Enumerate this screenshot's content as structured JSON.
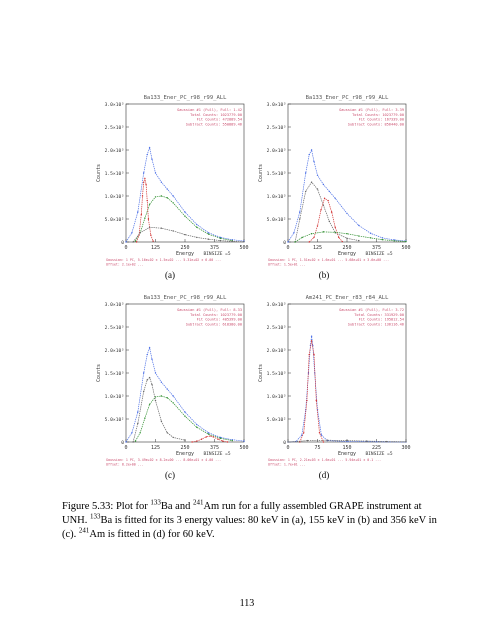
{
  "colors": {
    "blue": "#4b6fe6",
    "green": "#2f8f2f",
    "red": "#d23232",
    "gray": "#666666",
    "legend": "#c94a6b"
  },
  "panels": [
    {
      "title": "Ba133_Ener_PC_r98_r99_ALL",
      "label": "(a)",
      "legend": [
        "Gaussian #1 (Full), Full: 1.42",
        "Total Counts: 1023779.00",
        "Fit Counts: 472889.54",
        "Subtract Counts: 550889.46"
      ],
      "footer": [
        "Gaussian: 1 PC, 5.16e+02 ± 1.5e+02 ... 5.31e+02 ± 6.00 ...",
        "Offset: 2.1e+02 ..."
      ],
      "chart_data": {
        "type": "line",
        "xlabel": "Energy",
        "bin_label": "BINSIZE =5",
        "ylabel": "Counts",
        "xlim": [
          0,
          500
        ],
        "ylim": [
          0,
          3000
        ],
        "xticks": [
          "0",
          "125",
          "250",
          "375",
          "500"
        ],
        "yticks": [
          "0",
          "5.0×10²",
          "1.0×10³",
          "1.5×10³",
          "2.0×10³",
          "2.5×10³",
          "3.0×10³"
        ],
        "series": [
          {
            "color": "blue",
            "x": [
              0,
              25,
              50,
              75,
              90,
              100,
              110,
              125,
              150,
              175,
              200,
              250,
              300,
              350,
              400,
              450,
              500
            ],
            "y": [
              0,
              200,
              650,
              1500,
              1900,
              2050,
              1800,
              1500,
              1300,
              1150,
              1000,
              650,
              380,
              200,
              100,
              50,
              20
            ]
          },
          {
            "color": "green",
            "x": [
              40,
              60,
              80,
              100,
              125,
              150,
              175,
              200,
              250,
              300,
              350,
              400,
              450
            ],
            "y": [
              20,
              200,
              520,
              820,
              980,
              1000,
              960,
              850,
              560,
              320,
              170,
              80,
              30
            ]
          },
          {
            "color": "red",
            "x": [
              45,
              55,
              65,
              70,
              75,
              80,
              85,
              90,
              95,
              105,
              115
            ],
            "y": [
              0,
              150,
              600,
              1000,
              1300,
              1380,
              1250,
              900,
              500,
              150,
              20
            ]
          },
          {
            "color": "gray",
            "x": [
              30,
              60,
              100,
              150,
              200,
              250,
              300,
              350,
              400,
              450,
              500
            ],
            "y": [
              0,
              200,
              320,
              300,
              240,
              160,
              100,
              60,
              30,
              15,
              5
            ]
          }
        ]
      }
    },
    {
      "title": "Ba133_Ener_PC_r98_r99_ALL",
      "label": "(b)",
      "legend": [
        "Gaussian #1 (Full), Full: 3.39",
        "Total Counts: 1023779.00",
        "Fit Counts: 167339.00",
        "Subtract Counts: 856440.00"
      ],
      "footer": [
        "Gaussian: 1 PC, 1.51e+02 ± 1.6e+01 ... 5.68e+01 ± 3.6e+00 ...",
        "Offset: 1.5e+01 ..."
      ],
      "chart_data": {
        "type": "line",
        "xlabel": "Energy",
        "bin_label": "BINSIZE =5",
        "ylabel": "Counts",
        "xlim": [
          0,
          500
        ],
        "ylim": [
          0,
          3000
        ],
        "xticks": [
          "0",
          "125",
          "250",
          "375",
          "500"
        ],
        "yticks": [
          "0",
          "5.0×10²",
          "1.0×10³",
          "1.5×10³",
          "2.0×10³",
          "2.5×10³",
          "3.0×10³"
        ],
        "series": [
          {
            "color": "blue",
            "x": [
              0,
              25,
              50,
              75,
              90,
              100,
              110,
              125,
              150,
              175,
              200,
              250,
              300,
              350,
              400,
              450,
              500
            ],
            "y": [
              0,
              200,
              650,
              1500,
              1900,
              2000,
              1750,
              1450,
              1250,
              1100,
              950,
              620,
              360,
              190,
              90,
              45,
              20
            ]
          },
          {
            "color": "gray",
            "x": [
              30,
              50,
              75,
              100,
              125,
              150,
              175,
              200,
              250,
              300
            ],
            "y": [
              0,
              500,
              1100,
              1300,
              1150,
              800,
              450,
              200,
              80,
              30
            ]
          },
          {
            "color": "red",
            "x": [
              90,
              110,
              125,
              140,
              155,
              170,
              185,
              200,
              215,
              230
            ],
            "y": [
              0,
              100,
              350,
              700,
              950,
              900,
              650,
              320,
              100,
              10
            ]
          },
          {
            "color": "green",
            "x": [
              30,
              60,
              100,
              150,
              200,
              250,
              300,
              350,
              400,
              450,
              500
            ],
            "y": [
              0,
              100,
              180,
              220,
              210,
              180,
              130,
              90,
              50,
              25,
              10
            ]
          }
        ]
      }
    },
    {
      "title": "Ba133_Ener_PC_r98_r99_ALL",
      "label": "(c)",
      "legend": [
        "Gaussian #1 (Full), Full: 8.33",
        "Total Counts: 1023779.00",
        "Fit Counts: 405399.00",
        "Subtract Counts: 618380.00"
      ],
      "footer": [
        "Gaussian: 1 PC, 3.49e+02 ± 8.2e+00 ... 8.06e+01 ± 4.00 ...",
        "Offset: 8.2e+00 ..."
      ],
      "chart_data": {
        "type": "line",
        "xlabel": "Energy",
        "bin_label": "BINSIZE =5",
        "ylabel": "Counts",
        "xlim": [
          0,
          500
        ],
        "ylim": [
          0,
          3000
        ],
        "xticks": [
          "0",
          "125",
          "250",
          "375",
          "500"
        ],
        "yticks": [
          "0",
          "5.0×10²",
          "1.0×10³",
          "1.5×10³",
          "2.0×10³",
          "2.5×10³",
          "3.0×10³"
        ],
        "series": [
          {
            "color": "blue",
            "x": [
              0,
              25,
              50,
              75,
              90,
              100,
              110,
              125,
              150,
              175,
              200,
              250,
              300,
              350,
              400,
              450,
              500
            ],
            "y": [
              0,
              200,
              650,
              1500,
              1900,
              2050,
              1800,
              1500,
              1300,
              1150,
              1000,
              650,
              380,
              200,
              100,
              50,
              20
            ]
          },
          {
            "color": "green",
            "x": [
              40,
              60,
              80,
              100,
              125,
              150,
              175,
              200,
              250,
              300,
              350,
              400,
              450
            ],
            "y": [
              20,
              200,
              520,
              820,
              980,
              1000,
              960,
              850,
              560,
              320,
              170,
              80,
              30
            ]
          },
          {
            "color": "gray",
            "x": [
              30,
              50,
              75,
              90,
              100,
              110,
              125,
              150,
              175,
              200,
              250
            ],
            "y": [
              0,
              400,
              1100,
              1350,
              1400,
              1250,
              900,
              450,
              200,
              100,
              40
            ]
          },
          {
            "color": "red",
            "x": [
              280,
              300,
              320,
              340,
              356,
              370,
              390,
              410,
              430
            ],
            "y": [
              0,
              20,
              60,
              110,
              130,
              110,
              60,
              20,
              0
            ]
          }
        ]
      }
    },
    {
      "title": "Am241_PC_Ener_r83_r84_ALL",
      "label": "(d)",
      "legend": [
        "Gaussian #1 (Full), Full: 3.72",
        "Total Counts: 331929.00",
        "Fit Counts: 195812.54",
        "Subtract Counts: 136116.46"
      ],
      "footer": [
        "Gaussian: 1 PC, 2.21e+03 ± 1.6e+01 ... 5.94e+01 ± 0.1 ...",
        "Offset: 1.7e+01 ..."
      ],
      "chart_data": {
        "type": "line",
        "xlabel": "Energy",
        "bin_label": "BINSIZE =5",
        "ylabel": "Counts",
        "xlim": [
          0,
          300
        ],
        "ylim": [
          0,
          3000
        ],
        "xticks": [
          "0",
          "75",
          "150",
          "225",
          "300"
        ],
        "yticks": [
          "0",
          "5.0×10²",
          "1.0×10³",
          "1.5×10³",
          "2.0×10³",
          "2.5×10³",
          "3.0×10³"
        ],
        "series": [
          {
            "color": "blue",
            "x": [
              0,
              20,
              35,
              45,
              52,
              57,
              60,
              63,
              68,
              75,
              85,
              100,
              150,
              225,
              300
            ],
            "y": [
              0,
              10,
              150,
              700,
              1500,
              2100,
              2300,
              2100,
              1500,
              700,
              150,
              30,
              10,
              5,
              0
            ]
          },
          {
            "color": "red",
            "x": [
              30,
              40,
              48,
              54,
              60,
              66,
              72,
              80,
              90
            ],
            "y": [
              0,
              200,
              900,
              1900,
              2200,
              1900,
              900,
              200,
              0
            ]
          },
          {
            "color": "gray",
            "x": [
              0,
              50,
              100,
              150,
              200,
              250,
              300
            ],
            "y": [
              0,
              30,
              40,
              30,
              20,
              10,
              5
            ]
          }
        ]
      }
    }
  ],
  "caption": {
    "p1": "Figure 5.33: Plot for ",
    "sup1": "133",
    "p2": "Ba and ",
    "sup2": "241",
    "p3": "Am run for a fully assembled GRAPE instrument at UNH. ",
    "sup3": "133",
    "p4": "Ba is fitted for its 3 energy values: 80 keV in (a), 155 keV in (b) and 356 keV in (c). ",
    "sup4": "241",
    "p5": "Am is fitted in (d) for 60 keV."
  },
  "page_number": "113"
}
